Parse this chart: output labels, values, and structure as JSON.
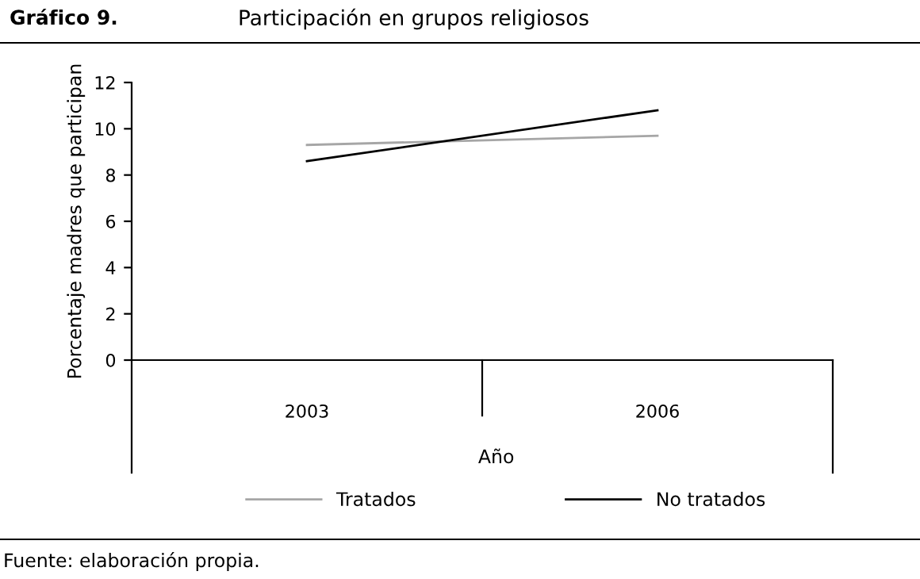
{
  "chart_data": {
    "type": "line",
    "title": "Gráfico 9.",
    "subtitle": "Participación en grupos religiosos",
    "xlabel": "Año",
    "ylabel": "Porcentaje madres que participan",
    "categories": [
      "2003",
      "2006"
    ],
    "series": [
      {
        "name": "Tratados",
        "color": "#a6a6a6",
        "values": [
          9.3,
          9.7
        ]
      },
      {
        "name": "No tratados",
        "color": "#000000",
        "values": [
          8.6,
          10.8
        ]
      }
    ],
    "ylim": [
      0,
      12
    ],
    "yticks": [
      0,
      2,
      4,
      6,
      8,
      10,
      12
    ],
    "grid": false,
    "legend": "bottom",
    "annotations": [
      "Fuente: elaboración propia."
    ]
  }
}
